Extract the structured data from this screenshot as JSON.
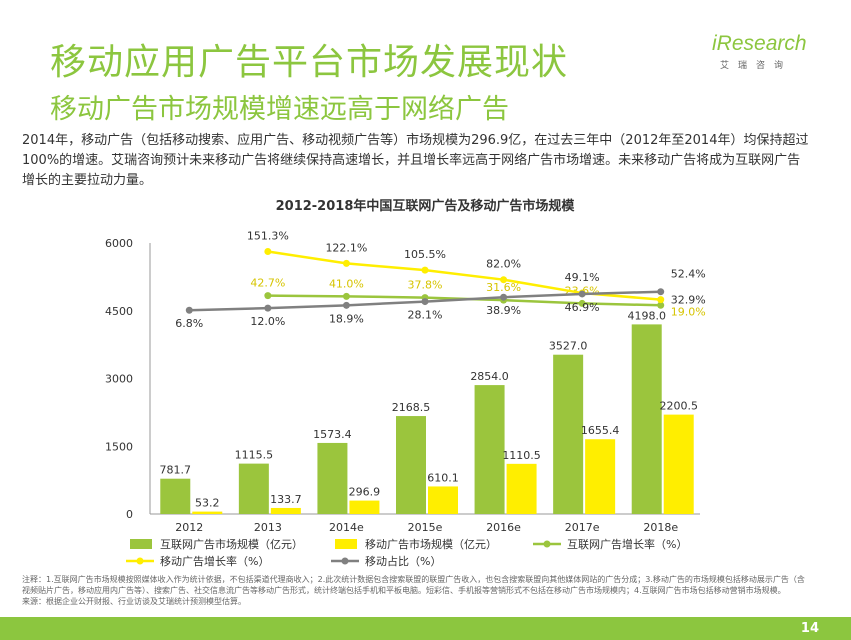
{
  "header": {
    "title": "移动应用广告平台市场发展现状",
    "subtitle": "移动广告市场规模增速远高于网络广告"
  },
  "logo": {
    "brand_prefix": "i",
    "brand": "Research",
    "brand_cn": "艾瑞咨询"
  },
  "intro": "2014年，移动广告（包括移动搜索、应用广告、移动视频广告等）市场规模为296.9亿，在过去三年中（2012年至2014年）均保持超过100%的增速。艾瑞咨询预计未来移动广告将继续保持高速增长，并且增长率远高于网络广告市场增速。未来移动广告将成为互联网广告增长的主要拉动力量。",
  "notes": "注释：1.互联网广告市场规模按照媒体收入作为统计依据，不包括渠道代理商收入；2.此次统计数据包含搜索联盟的联盟广告收入，也包含搜索联盟向其他媒体网站的广告分成；3.移动广告的市场规模包括移动展示广告（含视频贴片广告，移动应用内广告等）、搜索广告、社交信息流广告等移动广告形式，统计终端包括手机和平板电脑。短彩信、手机报等营销形式不包括在移动广告市场规模内；4.互联网广告市场包括移动营销市场规模。",
  "source": "来源：根据企业公开财报、行业访谈及艾瑞统计预测模型估算。",
  "page_number": "14",
  "chart_data": {
    "type": "bar",
    "title": "2012-2018年中国互联网广告及移动广告市场规模",
    "categories": [
      "2012",
      "2013",
      "2014e",
      "2015e",
      "2016e",
      "2017e",
      "2018e"
    ],
    "ylim": [
      0,
      6000
    ],
    "yticks": [
      0,
      1500,
      3000,
      4500,
      6000
    ],
    "series": [
      {
        "name": "互联网广告市场规模（亿元）",
        "type": "bar",
        "color": "#9bc53d",
        "values": [
          781.7,
          1115.5,
          1573.4,
          2168.5,
          2854.0,
          3527.0,
          4198.0
        ],
        "labels": [
          "781.7",
          "1115.5",
          "1573.4",
          "2168.5",
          "2854.0",
          "3527.0",
          "4198.0"
        ]
      },
      {
        "name": "移动广告市场规模（亿元）",
        "type": "bar",
        "color": "#ffee00",
        "values": [
          53.2,
          133.7,
          296.9,
          610.1,
          1110.5,
          1655.4,
          2200.5
        ],
        "labels": [
          "53.2",
          "133.7",
          "296.9",
          "610.1",
          "1110.5",
          "1655.4",
          "2200.5"
        ]
      },
      {
        "name": "互联网广告增长率（%）",
        "type": "line",
        "color": "#9bc53d",
        "values": [
          null,
          42.7,
          41.0,
          37.8,
          31.6,
          23.6,
          19.0
        ],
        "labels": [
          "",
          "42.7%",
          "41.0%",
          "37.8%",
          "31.6%",
          "23.6%",
          "19.0%"
        ]
      },
      {
        "name": "移动广告增长率（%）",
        "type": "line",
        "color": "#ffee00",
        "values": [
          null,
          151.3,
          122.1,
          105.5,
          82.0,
          49.1,
          32.9
        ],
        "labels": [
          "",
          "151.3%",
          "122.1%",
          "105.5%",
          "82.0%",
          "49.1%",
          "32.9%"
        ]
      },
      {
        "name": "移动占比（%）",
        "type": "line",
        "color": "#808080",
        "values": [
          6.8,
          12.0,
          18.9,
          28.1,
          38.9,
          46.9,
          52.4
        ],
        "labels": [
          "6.8%",
          "12.0%",
          "18.9%",
          "28.1%",
          "38.9%",
          "46.9%",
          "52.4%"
        ]
      }
    ],
    "legend_position": "bottom"
  }
}
